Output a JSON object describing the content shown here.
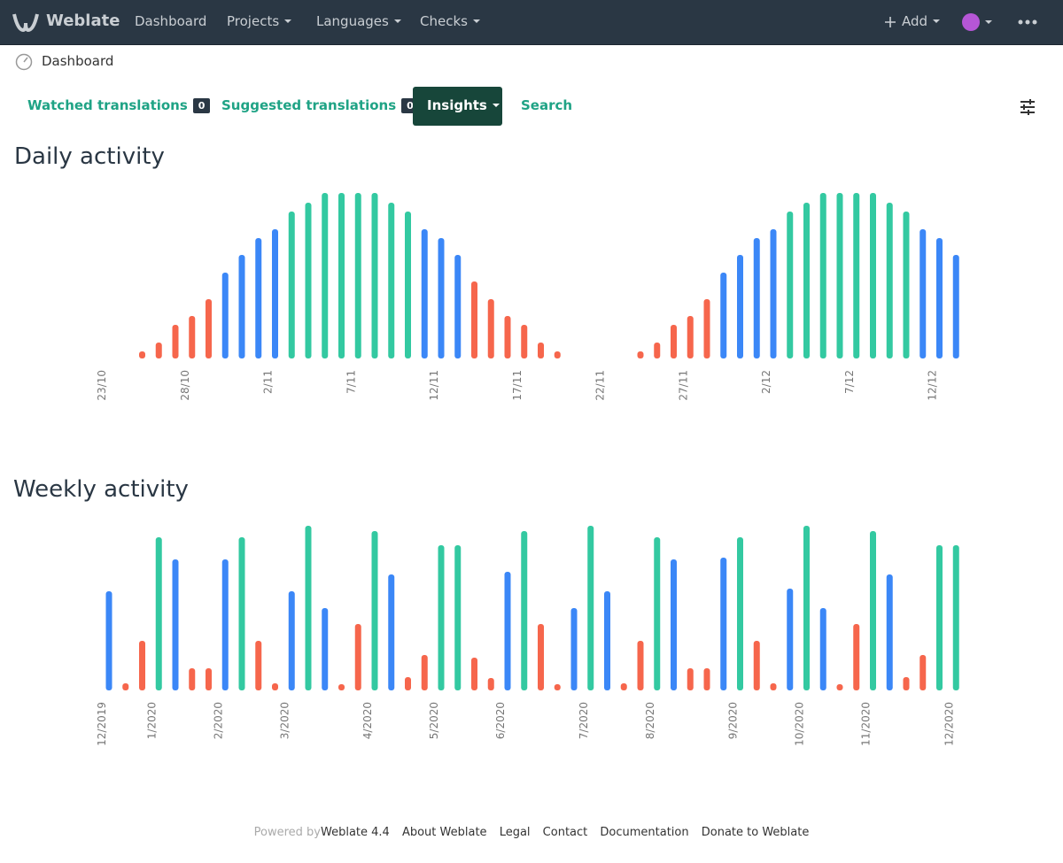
{
  "navbar": {
    "brand": "Weblate",
    "items": [
      "Dashboard",
      "Projects",
      "Languages",
      "Checks"
    ],
    "add": "Add"
  },
  "breadcrumb": "Dashboard",
  "tabs": [
    {
      "label": "Watched translations",
      "badge": "0"
    },
    {
      "label": "Suggested translations",
      "badge": "0"
    },
    {
      "label": "Insights"
    },
    {
      "label": "Search"
    }
  ],
  "chart_data": [
    {
      "type": "bar",
      "title": "Daily activity",
      "categories": [
        "23/10",
        null,
        null,
        null,
        null,
        "28/10",
        null,
        null,
        null,
        null,
        "2/11",
        null,
        null,
        null,
        null,
        "7/11",
        null,
        null,
        null,
        null,
        "12/11",
        null,
        null,
        null,
        null,
        "17/11",
        null,
        null,
        null,
        null,
        "22/11",
        null,
        null,
        null,
        null,
        "27/11",
        null,
        null,
        null,
        null,
        "2/12",
        null,
        null,
        null,
        null,
        "7/12",
        null,
        null,
        null,
        null,
        "12/12",
        null
      ],
      "values": [
        0,
        0,
        8,
        18,
        38,
        48,
        67,
        97,
        117,
        136,
        146,
        166,
        176,
        187,
        187,
        187,
        187,
        176,
        166,
        146,
        136,
        117,
        87,
        67,
        48,
        38,
        18,
        8,
        0,
        0,
        0,
        0,
        8,
        18,
        38,
        48,
        67,
        97,
        117,
        136,
        146,
        166,
        176,
        187,
        187,
        187,
        187,
        176,
        166,
        146,
        136,
        117
      ],
      "colors": [
        null,
        null,
        "#f6664c",
        "#f6664c",
        "#f6664c",
        "#f6664c",
        "#f6664c",
        "#3b87f7",
        "#3b87f7",
        "#3b87f7",
        "#3b87f7",
        "#33c9a1",
        "#33c9a1",
        "#33c9a1",
        "#33c9a1",
        "#33c9a1",
        "#33c9a1",
        "#33c9a1",
        "#33c9a1",
        "#3b87f7",
        "#3b87f7",
        "#3b87f7",
        "#f6664c",
        "#f6664c",
        "#f6664c",
        "#f6664c",
        "#f6664c",
        "#f6664c",
        null,
        null,
        null,
        null,
        "#f6664c",
        "#f6664c",
        "#f6664c",
        "#f6664c",
        "#f6664c",
        "#3b87f7",
        "#3b87f7",
        "#3b87f7",
        "#3b87f7",
        "#33c9a1",
        "#33c9a1",
        "#33c9a1",
        "#33c9a1",
        "#33c9a1",
        "#33c9a1",
        "#33c9a1",
        "#33c9a1",
        "#3b87f7",
        "#3b87f7",
        "#3b87f7"
      ],
      "ylim": [
        0,
        187
      ]
    },
    {
      "type": "bar",
      "title": "Weekly activity",
      "categories": [
        "12/2019",
        null,
        null,
        "1/2020",
        null,
        null,
        null,
        "2/2020",
        null,
        null,
        null,
        "3/2020",
        null,
        null,
        null,
        null,
        "4/2020",
        null,
        null,
        null,
        "5/2020",
        null,
        null,
        null,
        "6/2020",
        null,
        null,
        null,
        null,
        "7/2020",
        null,
        null,
        null,
        "8/2020",
        null,
        null,
        null,
        null,
        "9/2020",
        null,
        null,
        null,
        "10/2020",
        null,
        null,
        null,
        "11/2020",
        null,
        null,
        null,
        null,
        "12/2020"
      ],
      "values": [
        112,
        8,
        56,
        173,
        148,
        25,
        25,
        148,
        173,
        56,
        8,
        112,
        186,
        93,
        7,
        75,
        180,
        131,
        15,
        40,
        164,
        164,
        37,
        14,
        134,
        180,
        75,
        7,
        93,
        186,
        112,
        8,
        56,
        173,
        148,
        25,
        25,
        150,
        173,
        56,
        8,
        115,
        186,
        93,
        7,
        75,
        180,
        131,
        15,
        40,
        164,
        164
      ],
      "colors": [
        "#3b87f7",
        "#f6664c",
        "#f6664c",
        "#33c9a1",
        "#3b87f7",
        "#f6664c",
        "#f6664c",
        "#3b87f7",
        "#33c9a1",
        "#f6664c",
        "#f6664c",
        "#3b87f7",
        "#33c9a1",
        "#3b87f7",
        "#f6664c",
        "#f6664c",
        "#33c9a1",
        "#3b87f7",
        "#f6664c",
        "#f6664c",
        "#33c9a1",
        "#33c9a1",
        "#f6664c",
        "#f6664c",
        "#3b87f7",
        "#33c9a1",
        "#f6664c",
        "#f6664c",
        "#3b87f7",
        "#33c9a1",
        "#3b87f7",
        "#f6664c",
        "#f6664c",
        "#33c9a1",
        "#3b87f7",
        "#f6664c",
        "#f6664c",
        "#3b87f7",
        "#33c9a1",
        "#f6664c",
        "#f6664c",
        "#3b87f7",
        "#33c9a1",
        "#3b87f7",
        "#f6664c",
        "#f6664c",
        "#33c9a1",
        "#3b87f7",
        "#f6664c",
        "#f6664c",
        "#33c9a1",
        "#33c9a1"
      ],
      "ylim": [
        0,
        186
      ]
    }
  ],
  "footer": {
    "powered": "Powered by",
    "links": [
      "Weblate 4.4",
      "About Weblate",
      "Legal",
      "Contact",
      "Documentation",
      "Donate to Weblate"
    ]
  }
}
